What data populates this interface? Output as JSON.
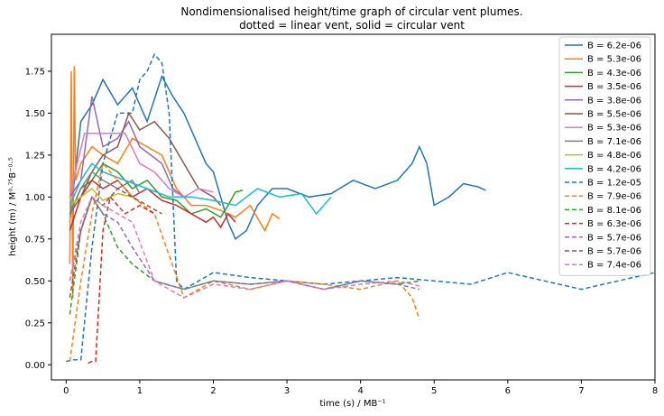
{
  "chart_data": {
    "type": "line",
    "title": "Nondimensionalised height/time graph of circular vent plumes.",
    "subtitle": "dotted = linear vent, solid = circular vent",
    "xlabel": "time (s) /  MB⁻¹",
    "ylabel": "height (m) / M⁰·⁷⁵B⁻⁰·⁵",
    "xlim": [
      -0.2,
      8.0
    ],
    "ylim": [
      -0.09,
      1.97
    ],
    "xticks": [
      "0",
      "1",
      "2",
      "3",
      "4",
      "5",
      "6",
      "7",
      "8"
    ],
    "yticks": [
      "0.00",
      "0.25",
      "0.50",
      "0.75",
      "1.00",
      "1.25",
      "1.50",
      "1.75"
    ],
    "grid": false,
    "legend_position": "top-right",
    "series": [
      {
        "name": "B = 6.2e-06",
        "color": "#1f77b4",
        "style": "solid",
        "x": [
          0.05,
          0.2,
          0.35,
          0.5,
          0.7,
          0.9,
          1.1,
          1.3,
          1.45,
          1.6,
          1.75,
          1.9,
          2.0,
          2.1,
          2.2,
          2.3,
          2.45,
          2.6,
          2.8,
          3.0,
          3.3,
          3.6,
          3.9,
          4.2,
          4.5,
          4.7,
          4.8,
          4.9,
          5.0,
          5.2,
          5.4,
          5.6,
          5.7
        ],
        "y": [
          0.85,
          1.45,
          1.55,
          1.7,
          1.55,
          1.65,
          1.45,
          1.72,
          1.6,
          1.5,
          1.35,
          1.2,
          1.15,
          1.0,
          0.85,
          0.75,
          0.8,
          0.95,
          1.05,
          1.05,
          1.0,
          1.02,
          1.1,
          1.05,
          1.1,
          1.2,
          1.3,
          1.2,
          0.95,
          1.0,
          1.08,
          1.06,
          1.04
        ]
      },
      {
        "name": "B = 5.3e-06",
        "color": "#ff7f0e",
        "style": "solid",
        "x": [
          0.05,
          0.07,
          0.09,
          0.11,
          0.13,
          0.2,
          0.35,
          0.5,
          0.7,
          0.9,
          1.1,
          1.3,
          1.5,
          1.7,
          1.9,
          2.1,
          2.3,
          2.5,
          2.7,
          2.8,
          2.9
        ],
        "y": [
          0.6,
          1.75,
          0.4,
          1.78,
          1.1,
          1.2,
          1.3,
          1.25,
          1.2,
          1.35,
          1.3,
          1.25,
          1.05,
          0.95,
          0.95,
          0.92,
          0.88,
          0.95,
          0.8,
          0.9,
          0.87
        ]
      },
      {
        "name": "B = 4.3e-06",
        "color": "#2ca02c",
        "style": "solid",
        "x": [
          0.05,
          0.2,
          0.35,
          0.5,
          0.7,
          0.9,
          1.1,
          1.3,
          1.5,
          1.7,
          1.9,
          2.1,
          2.2,
          2.3,
          2.4
        ],
        "y": [
          0.9,
          1.05,
          1.1,
          1.2,
          1.15,
          1.05,
          1.1,
          1.0,
          0.98,
          0.9,
          0.93,
          0.88,
          0.95,
          1.03,
          1.04
        ]
      },
      {
        "name": "B = 3.5e-06",
        "color": "#d62728",
        "style": "solid",
        "x": [
          0.05,
          0.2,
          0.35,
          0.5,
          0.7,
          0.9,
          1.1,
          1.3,
          1.5,
          1.7,
          1.9,
          2.0,
          2.1,
          2.2,
          2.3
        ],
        "y": [
          0.8,
          1.0,
          1.1,
          1.05,
          1.1,
          1.0,
          1.05,
          0.98,
          0.95,
          0.9,
          0.85,
          0.88,
          0.82,
          0.9,
          0.85
        ]
      },
      {
        "name": "B = 3.8e-06",
        "color": "#9467bd",
        "style": "solid",
        "x": [
          0.05,
          0.2,
          0.35,
          0.5,
          0.7,
          0.85,
          1.0,
          1.15,
          1.3,
          1.45,
          1.6
        ],
        "y": [
          1.0,
          1.1,
          1.6,
          1.3,
          1.35,
          1.45,
          1.3,
          1.25,
          1.2,
          1.05,
          1.0
        ]
      },
      {
        "name": "B = 5.5e-06",
        "color": "#8c564b",
        "style": "solid",
        "x": [
          0.05,
          0.2,
          0.35,
          0.5,
          0.7,
          0.85,
          1.0,
          1.2,
          1.4,
          1.6,
          1.8,
          2.0,
          2.1
        ],
        "y": [
          0.9,
          1.0,
          1.15,
          1.25,
          1.3,
          1.5,
          1.4,
          1.45,
          1.35,
          1.2,
          1.05,
          1.0,
          0.95
        ]
      },
      {
        "name": "B = 5.3e-06",
        "color": "#e377c2",
        "style": "solid",
        "x": [
          0.05,
          0.15,
          0.25,
          0.4,
          0.6,
          0.8,
          1.0,
          1.2,
          1.4,
          1.6,
          1.8,
          2.0
        ],
        "y": [
          1.0,
          1.2,
          1.38,
          1.38,
          1.38,
          1.38,
          1.2,
          1.15,
          1.05,
          1.0,
          1.05,
          1.03
        ]
      },
      {
        "name": "B = 7.1e-06",
        "color": "#7f7f7f",
        "style": "solid",
        "x": [
          0.05,
          0.2,
          0.35,
          0.5,
          0.7,
          0.9,
          1.0
        ],
        "y": [
          0.9,
          1.05,
          1.15,
          1.1,
          1.05,
          1.1,
          1.02
        ]
      },
      {
        "name": "B = 4.8e-06",
        "color": "#bcbd22",
        "style": "solid",
        "x": [
          0.05,
          0.2,
          0.35,
          0.5,
          0.7,
          0.9,
          1.0
        ],
        "y": [
          0.95,
          1.0,
          1.05,
          0.98,
          1.02,
          1.0,
          0.97
        ]
      },
      {
        "name": "B = 4.2e-06",
        "color": "#17becf",
        "style": "solid",
        "x": [
          0.05,
          0.2,
          0.35,
          0.5,
          0.8,
          1.1,
          1.4,
          1.7,
          2.0,
          2.3,
          2.6,
          2.9,
          3.2,
          3.4,
          3.5,
          3.6
        ],
        "y": [
          0.95,
          1.1,
          1.2,
          1.15,
          1.1,
          1.05,
          1.0,
          1.0,
          0.98,
          0.95,
          1.05,
          1.0,
          1.02,
          0.9,
          0.95,
          1.0
        ]
      },
      {
        "name": "B = 1.2e-05",
        "color": "#1f77b4",
        "style": "dashed",
        "x": [
          0.0,
          0.1,
          0.2,
          0.35,
          0.5,
          0.7,
          0.9,
          1.0,
          1.1,
          1.2,
          1.3,
          1.4,
          1.5,
          1.6,
          1.8,
          2.0,
          2.5,
          3.0,
          3.5,
          4.0,
          4.5,
          5.0,
          5.5,
          6.0,
          6.5,
          7.0,
          7.5,
          8.0
        ],
        "y": [
          0.02,
          0.03,
          0.03,
          0.7,
          1.2,
          1.5,
          1.5,
          1.7,
          1.75,
          1.85,
          1.8,
          1.5,
          0.5,
          0.45,
          0.5,
          0.55,
          0.52,
          0.5,
          0.48,
          0.5,
          0.52,
          0.5,
          0.48,
          0.55,
          0.5,
          0.45,
          0.5,
          0.55
        ]
      },
      {
        "name": "B = 7.9e-06",
        "color": "#ff7f0e",
        "style": "dashed",
        "x": [
          0.05,
          0.2,
          0.35,
          0.5,
          0.7,
          0.9,
          1.2,
          1.6,
          2.0,
          2.5,
          3.0,
          3.5,
          4.0,
          4.5,
          4.7,
          4.8
        ],
        "y": [
          0.02,
          0.5,
          0.9,
          1.2,
          1.1,
          1.0,
          0.9,
          0.4,
          0.5,
          0.45,
          0.5,
          0.48,
          0.45,
          0.5,
          0.4,
          0.27
        ]
      },
      {
        "name": "B = 8.1e-06",
        "color": "#2ca02c",
        "style": "dashed",
        "x": [
          0.05,
          0.2,
          0.35,
          0.5,
          0.7,
          0.9,
          1.2,
          1.6,
          2.0,
          2.5,
          3.0,
          3.5,
          4.0,
          4.5,
          4.8
        ],
        "y": [
          0.3,
          0.8,
          1.0,
          0.9,
          0.7,
          0.6,
          0.5,
          0.45,
          0.5,
          0.48,
          0.5,
          0.45,
          0.5,
          0.48,
          0.5
        ]
      },
      {
        "name": "B = 6.3e-06",
        "color": "#d62728",
        "style": "dashed",
        "x": [
          0.3,
          0.35,
          0.4,
          0.5,
          0.6,
          0.8,
          1.0,
          1.2
        ],
        "y": [
          0.01,
          0.02,
          0.02,
          0.8,
          1.0,
          0.9,
          0.95,
          0.9
        ]
      },
      {
        "name": "B = 5.7e-06",
        "color": "#9467bd",
        "style": "dashed",
        "x": [
          0.05,
          0.2,
          0.35,
          0.5,
          0.7,
          0.9,
          1.2,
          1.6,
          2.0,
          2.5,
          3.0,
          3.5,
          4.0,
          4.5,
          4.8
        ],
        "y": [
          0.5,
          0.8,
          1.0,
          0.9,
          0.85,
          0.7,
          0.5,
          0.45,
          0.5,
          0.48,
          0.5,
          0.45,
          0.5,
          0.48,
          0.45
        ]
      },
      {
        "name": "B = 5.7e-06",
        "color": "#8c564b",
        "style": "dashed",
        "x": [
          0.05,
          0.2,
          0.35,
          0.5,
          0.7,
          0.9,
          1.1,
          1.3
        ],
        "y": [
          0.4,
          0.8,
          1.0,
          0.95,
          1.05,
          1.0,
          0.95,
          0.9
        ]
      },
      {
        "name": "B = 7.4e-06",
        "color": "#e377c2",
        "style": "dashed",
        "x": [
          0.05,
          0.2,
          0.35,
          0.5,
          0.7,
          0.9,
          1.2,
          1.6,
          2.0,
          2.5,
          3.0,
          3.5,
          4.0,
          4.5,
          4.8
        ],
        "y": [
          0.5,
          0.85,
          1.0,
          0.95,
          0.9,
          0.85,
          0.5,
          0.4,
          0.48,
          0.45,
          0.5,
          0.45,
          0.48,
          0.5,
          0.47
        ]
      }
    ]
  }
}
